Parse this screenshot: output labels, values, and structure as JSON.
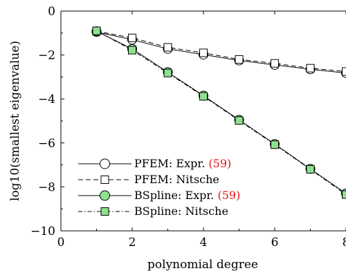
{
  "chart_data": {
    "type": "line",
    "title": "",
    "xlabel": "polynomial degree",
    "ylabel": "log10(smallest eigenvalue)",
    "xlim": [
      0,
      8
    ],
    "ylim": [
      -10,
      0
    ],
    "xticks": [
      "0",
      "2",
      "4",
      "6",
      "8"
    ],
    "yticks": [
      "0",
      "−2",
      "−4",
      "−6",
      "−8",
      "−10"
    ],
    "x": [
      1,
      2,
      3,
      4,
      5,
      6,
      7,
      8
    ],
    "series": [
      {
        "name": "PFEM: Expr.",
        "ref": "(59)",
        "values": [
          -0.95,
          -1.3,
          -1.72,
          -1.98,
          -2.25,
          -2.45,
          -2.65,
          -2.82
        ],
        "marker": "circle",
        "fill": "#ffffff",
        "line": "solid"
      },
      {
        "name": "PFEM: Nitsche",
        "ref": "",
        "values": [
          -0.92,
          -1.22,
          -1.65,
          -1.9,
          -2.2,
          -2.38,
          -2.6,
          -2.75
        ],
        "marker": "square",
        "fill": "#ffffff",
        "line": "dashed"
      },
      {
        "name": "BSpline: Expr.",
        "ref": "(59)",
        "values": [
          -0.92,
          -1.72,
          -2.78,
          -3.85,
          -4.95,
          -6.05,
          -7.18,
          -8.3
        ],
        "marker": "circle",
        "fill": "#8ee08e",
        "line": "solid"
      },
      {
        "name": "BSpline: Nitsche",
        "ref": "",
        "values": [
          -0.9,
          -1.78,
          -2.82,
          -3.88,
          -4.98,
          -6.08,
          -7.2,
          -8.35
        ],
        "marker": "square",
        "fill": "#8ee08e",
        "line": "dashdot"
      }
    ],
    "legend_position": "bottom-left",
    "ref_color": "#e01010",
    "grid": false
  }
}
